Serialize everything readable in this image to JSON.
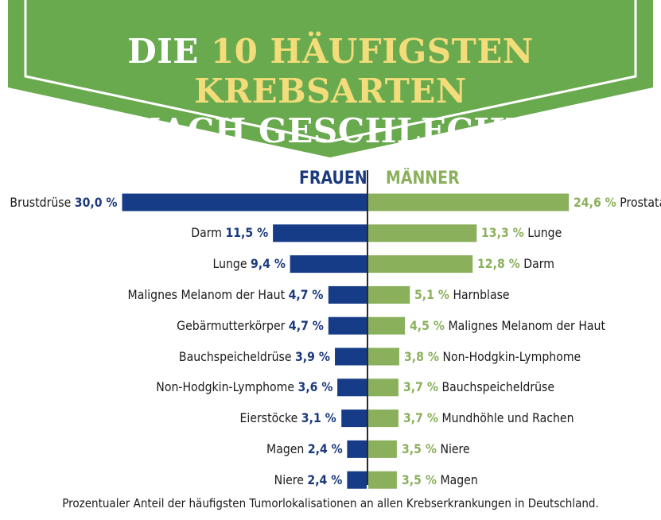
{
  "title": {
    "line1_part1": "DIE",
    "line1_highlight": "10 HÄUFIGSTEN KREBSARTEN",
    "line2": "NACH GESCHLECHT"
  },
  "colors": {
    "banner_green": "#6aaa4f",
    "banner_border": "#ffffff",
    "highlight_yellow": "#f3dc7a",
    "women_blue": "#163c87",
    "men_green": "#8ab05c"
  },
  "chart_data": {
    "type": "bar",
    "orientation": "horizontal-diverging",
    "xlim": [
      0,
      30
    ],
    "series": [
      {
        "name": "FRAUEN",
        "side": "left",
        "categories": [
          "Brustdrüse",
          "Darm",
          "Lunge",
          "Malignes Melanom der Haut",
          "Gebärmutterkörper",
          "Bauchspeicheldrüse",
          "Non-Hodgkin-Lymphome",
          "Eierstöcke",
          "Magen",
          "Niere"
        ],
        "values": [
          30.0,
          11.5,
          9.4,
          4.7,
          4.7,
          3.9,
          3.6,
          3.1,
          2.4,
          2.4
        ],
        "value_labels": [
          "30,0 %",
          "11,5 %",
          "9,4 %",
          "4,7 %",
          "4,7 %",
          "3,9 %",
          "3,6 %",
          "3,1 %",
          "2,4 %",
          "2,4 %"
        ]
      },
      {
        "name": "MÄNNER",
        "side": "right",
        "categories": [
          "Prostata",
          "Lunge",
          "Darm",
          "Harnblase",
          "Malignes Melanom der Haut",
          "Non-Hodgkin-Lymphome",
          "Bauchspeicheldrüse",
          "Mundhöhle und Rachen",
          "Niere",
          "Magen"
        ],
        "values": [
          24.6,
          13.3,
          12.8,
          5.1,
          4.5,
          3.8,
          3.7,
          3.7,
          3.5,
          3.5
        ],
        "value_labels": [
          "24,6 %",
          "13,3 %",
          "12,8 %",
          "5,1 %",
          "4,5 %",
          "3,8 %",
          "3,7 %",
          "3,7 %",
          "3,5 %",
          "3,5 %"
        ]
      }
    ]
  },
  "footnote": "Prozentualer Anteil der häufigsten Tumorlokalisationen an allen Krebserkrankungen in Deutschland."
}
